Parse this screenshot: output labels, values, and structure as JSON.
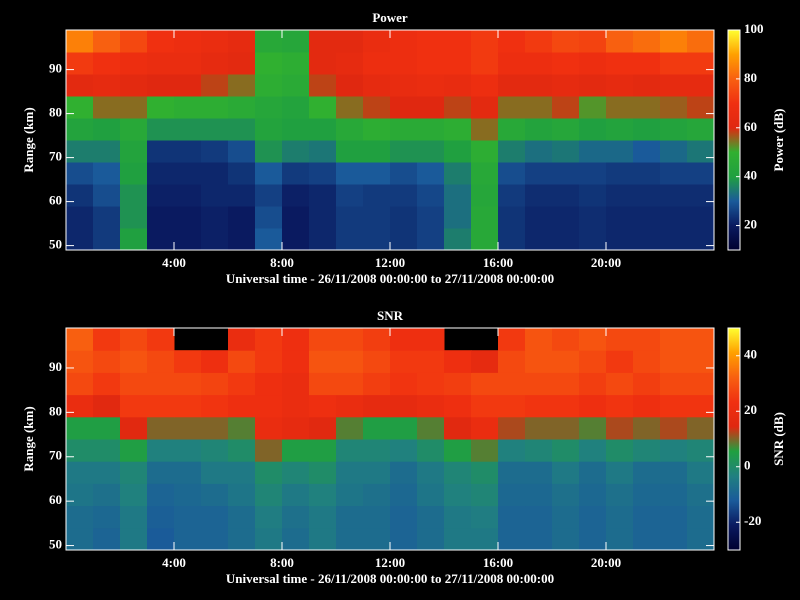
{
  "chart_data": [
    {
      "type": "heatmap",
      "title": "Power",
      "xlabel": "Universal time - 26/11/2008 00:00:00 to 27/11/2008 00:00:00",
      "ylabel": "Range (km)",
      "colorbar_label": "Power (dB)",
      "x": [
        0,
        1,
        2,
        3,
        4,
        5,
        6,
        7,
        8,
        9,
        10,
        11,
        12,
        13,
        14,
        15,
        16,
        17,
        18,
        19,
        20,
        21,
        22,
        23
      ],
      "y": [
        49,
        54,
        59,
        64,
        69,
        74,
        79,
        84,
        89,
        94
      ],
      "xlim": [
        0,
        24
      ],
      "ylim": [
        49,
        99
      ],
      "clim": [
        10,
        100
      ],
      "xticks": [
        {
          "value": 4,
          "label": "4:00"
        },
        {
          "value": 8,
          "label": "8:00"
        },
        {
          "value": 12,
          "label": "12:00"
        },
        {
          "value": 16,
          "label": "16:00"
        },
        {
          "value": 20,
          "label": "20:00"
        }
      ],
      "yticks": [
        50,
        60,
        70,
        80,
        90
      ],
      "cticks": [
        20,
        40,
        60,
        80,
        100
      ],
      "colorscale": [
        "#000030",
        "#0a1a60",
        "#1a5a9a",
        "#20a040",
        "#30b030",
        "#e02810",
        "#f03010",
        "#f86010",
        "#ffa000",
        "#ffff30"
      ],
      "values": [
        [
          22,
          25,
          40,
          20,
          20,
          21,
          20,
          30,
          20,
          22,
          25,
          25,
          24,
          26,
          35,
          45,
          24,
          22,
          22,
          23,
          22,
          22,
          22,
          22
        ],
        [
          22,
          25,
          38,
          20,
          20,
          21,
          20,
          28,
          20,
          22,
          25,
          25,
          24,
          26,
          33,
          45,
          24,
          22,
          22,
          23,
          22,
          22,
          22,
          22
        ],
        [
          24,
          28,
          38,
          21,
          21,
          22,
          22,
          26,
          21,
          22,
          26,
          25,
          25,
          27,
          33,
          44,
          25,
          23,
          23,
          24,
          23,
          23,
          23,
          23
        ],
        [
          28,
          30,
          40,
          22,
          22,
          22,
          24,
          30,
          25,
          26,
          30,
          30,
          28,
          30,
          35,
          45,
          28,
          26,
          26,
          26,
          25,
          25,
          26,
          26
        ],
        [
          35,
          35,
          42,
          24,
          24,
          25,
          28,
          38,
          35,
          34,
          40,
          40,
          38,
          38,
          40,
          48,
          35,
          33,
          34,
          32,
          32,
          30,
          32,
          34
        ],
        [
          42,
          40,
          45,
          38,
          38,
          38,
          38,
          42,
          40,
          40,
          45,
          48,
          46,
          46,
          48,
          55,
          45,
          42,
          44,
          40,
          42,
          40,
          42,
          44
        ],
        [
          50,
          55,
          55,
          50,
          48,
          48,
          46,
          44,
          42,
          50,
          55,
          58,
          60,
          60,
          58,
          62,
          55,
          55,
          58,
          52,
          55,
          55,
          56,
          58
        ],
        [
          62,
          64,
          62,
          60,
          60,
          58,
          55,
          48,
          46,
          58,
          60,
          64,
          65,
          66,
          65,
          68,
          62,
          62,
          64,
          62,
          64,
          62,
          64,
          64
        ],
        [
          72,
          70,
          68,
          66,
          66,
          64,
          62,
          50,
          48,
          62,
          64,
          68,
          68,
          70,
          70,
          72,
          68,
          68,
          70,
          68,
          70,
          70,
          72,
          72
        ],
        [
          85,
          80,
          75,
          70,
          68,
          66,
          64,
          45,
          44,
          62,
          62,
          66,
          68,
          70,
          70,
          72,
          70,
          72,
          75,
          74,
          80,
          82,
          85,
          82
        ]
      ]
    },
    {
      "type": "heatmap",
      "title": "SNR",
      "xlabel": "Universal time - 26/11/2008 00:00:00 to 27/11/2008 00:00:00",
      "ylabel": "Range (km)",
      "colorbar_label": "SNR (dB)",
      "x": [
        0,
        1,
        2,
        3,
        4,
        5,
        6,
        7,
        8,
        9,
        10,
        11,
        12,
        13,
        14,
        15,
        16,
        17,
        18,
        19,
        20,
        21,
        22,
        23
      ],
      "y": [
        49,
        54,
        59,
        64,
        69,
        74,
        79,
        84,
        89,
        94
      ],
      "xlim": [
        0,
        24
      ],
      "ylim": [
        49,
        99
      ],
      "clim": [
        -30,
        50
      ],
      "xticks": [
        {
          "value": 4,
          "label": "4:00"
        },
        {
          "value": 8,
          "label": "8:00"
        },
        {
          "value": 12,
          "label": "12:00"
        },
        {
          "value": 16,
          "label": "16:00"
        },
        {
          "value": 20,
          "label": "20:00"
        }
      ],
      "yticks": [
        50,
        60,
        70,
        80,
        90
      ],
      "cticks": [
        -20,
        0,
        20,
        40
      ],
      "colorscale": [
        "#000030",
        "#0a1a60",
        "#1a5a9a",
        "#208080",
        "#20a040",
        "#e02810",
        "#f03010",
        "#f86010",
        "#ffa000",
        "#ffff30"
      ],
      "values": [
        [
          -8,
          -10,
          -5,
          -12,
          -10,
          -10,
          -8,
          -5,
          -8,
          -5,
          -8,
          -8,
          -10,
          -8,
          -5,
          -5,
          -10,
          -10,
          -8,
          -10,
          -8,
          -10,
          -10,
          -8
        ],
        [
          -8,
          -9,
          -5,
          -11,
          -10,
          -10,
          -8,
          -4,
          -7,
          -5,
          -8,
          -8,
          -10,
          -8,
          -5,
          -4,
          -10,
          -10,
          -8,
          -10,
          -8,
          -10,
          -10,
          -8
        ],
        [
          -6,
          -7,
          -3,
          -10,
          -9,
          -8,
          -6,
          -2,
          -5,
          -3,
          -6,
          -7,
          -9,
          -6,
          -3,
          -2,
          -9,
          -9,
          -7,
          -9,
          -7,
          -9,
          -9,
          -7
        ],
        [
          -5,
          -5,
          -2,
          -8,
          -8,
          -5,
          -5,
          0,
          -2,
          0,
          -5,
          -5,
          -8,
          -5,
          -2,
          0,
          -8,
          -8,
          -5,
          -8,
          -5,
          -8,
          -8,
          -5
        ],
        [
          0,
          0,
          5,
          -3,
          -3,
          -2,
          0,
          10,
          5,
          5,
          -2,
          -2,
          -3,
          0,
          5,
          8,
          -3,
          -2,
          0,
          -3,
          0,
          -2,
          -3,
          -2
        ],
        [
          5,
          5,
          15,
          10,
          10,
          10,
          8,
          20,
          18,
          15,
          8,
          5,
          5,
          8,
          15,
          20,
          12,
          10,
          10,
          8,
          12,
          10,
          12,
          10
        ],
        [
          20,
          15,
          25,
          25,
          25,
          24,
          22,
          22,
          20,
          22,
          20,
          18,
          18,
          20,
          22,
          25,
          25,
          24,
          24,
          22,
          24,
          22,
          24,
          24
        ],
        [
          28,
          25,
          28,
          28,
          28,
          27,
          25,
          22,
          20,
          28,
          28,
          26,
          24,
          25,
          26,
          28,
          28,
          28,
          28,
          26,
          28,
          26,
          28,
          28
        ],
        [
          30,
          28,
          30,
          28,
          25,
          22,
          28,
          25,
          22,
          30,
          30,
          28,
          25,
          25,
          22,
          18,
          28,
          30,
          30,
          28,
          25,
          28,
          30,
          30
        ],
        [
          32,
          25,
          28,
          25,
          null,
          null,
          20,
          25,
          22,
          28,
          28,
          26,
          22,
          22,
          null,
          null,
          25,
          30,
          28,
          30,
          28,
          28,
          30,
          30
        ]
      ]
    }
  ]
}
